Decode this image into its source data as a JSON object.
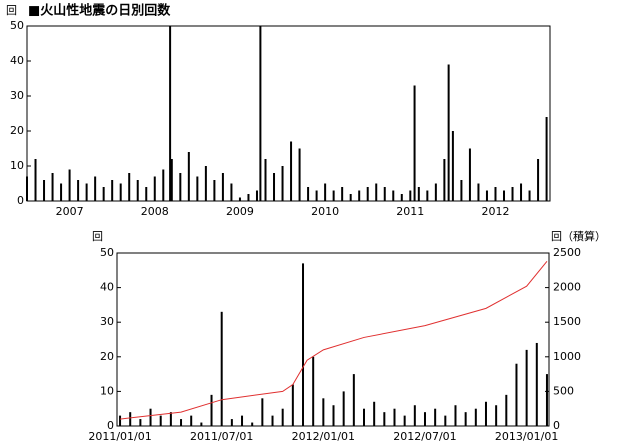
{
  "chart_data": [
    {
      "type": "bar",
      "title": "■火山性地震の日別回数",
      "y_label": "回",
      "color": "#000000",
      "x": [
        2007.0,
        2007.1,
        2007.2,
        2007.3,
        2007.4,
        2007.5,
        2007.6,
        2007.7,
        2007.8,
        2007.9,
        2008.0,
        2008.1,
        2008.2,
        2008.3,
        2008.4,
        2008.5,
        2008.6,
        2008.68,
        2008.7,
        2008.8,
        2008.9,
        2009.0,
        2009.1,
        2009.2,
        2009.3,
        2009.4,
        2009.5,
        2009.6,
        2009.7,
        2009.74,
        2009.8,
        2009.9,
        2010.0,
        2010.1,
        2010.2,
        2010.3,
        2010.4,
        2010.5,
        2010.6,
        2010.7,
        2010.8,
        2010.9,
        2011.0,
        2011.1,
        2011.2,
        2011.3,
        2011.4,
        2011.5,
        2011.55,
        2011.6,
        2011.7,
        2011.8,
        2011.9,
        2011.95,
        2012.0,
        2012.1,
        2012.2,
        2012.3,
        2012.4,
        2012.5,
        2012.6,
        2012.7,
        2012.8,
        2012.9,
        2013.0,
        2013.1
      ],
      "values": [
        7,
        12,
        6,
        8,
        5,
        9,
        6,
        5,
        7,
        4,
        6,
        5,
        8,
        6,
        4,
        7,
        9,
        50,
        12,
        8,
        14,
        7,
        10,
        6,
        8,
        5,
        1,
        2,
        3,
        50,
        12,
        8,
        10,
        17,
        15,
        4,
        3,
        5,
        3,
        4,
        2,
        3,
        4,
        5,
        4,
        3,
        2,
        3,
        33,
        4,
        3,
        5,
        12,
        39,
        20,
        6,
        15,
        5,
        3,
        4,
        3,
        4,
        5,
        3,
        12,
        24
      ],
      "xlim": [
        2007.0,
        2013.14
      ],
      "xticks": [
        {
          "value": 2007.5,
          "label": "2007"
        },
        {
          "value": 2008.5,
          "label": "2008"
        },
        {
          "value": 2009.5,
          "label": "2009"
        },
        {
          "value": 2010.5,
          "label": "2010"
        },
        {
          "value": 2011.5,
          "label": "2011"
        },
        {
          "value": 2012.5,
          "label": "2012"
        }
      ],
      "ylim": [
        0,
        50
      ],
      "yticks": [
        0,
        10,
        20,
        30,
        40,
        50
      ]
    },
    {
      "type": "bar",
      "y_label": "回",
      "y2_label": "回（積算）",
      "series": [
        {
          "name": "日別回数",
          "color": "#000000",
          "x": [
            2011.0,
            2011.05,
            2011.1,
            2011.15,
            2011.2,
            2011.25,
            2011.3,
            2011.35,
            2011.4,
            2011.45,
            2011.5,
            2011.55,
            2011.6,
            2011.65,
            2011.7,
            2011.75,
            2011.8,
            2011.85,
            2011.9,
            2011.95,
            2012.0,
            2012.05,
            2012.1,
            2012.15,
            2012.2,
            2012.25,
            2012.3,
            2012.35,
            2012.4,
            2012.45,
            2012.5,
            2012.55,
            2012.6,
            2012.65,
            2012.7,
            2012.75,
            2012.8,
            2012.85,
            2012.9,
            2012.95,
            2013.0,
            2013.05,
            2013.1
          ],
          "values": [
            3,
            4,
            2,
            5,
            3,
            4,
            2,
            3,
            1,
            9,
            33,
            2,
            3,
            1,
            8,
            3,
            5,
            12,
            47,
            20,
            8,
            6,
            10,
            15,
            5,
            7,
            4,
            5,
            3,
            6,
            4,
            5,
            3,
            6,
            4,
            5,
            7,
            6,
            9,
            18,
            22,
            24,
            15
          ]
        },
        {
          "name": "積算",
          "color": "#e03030",
          "axis": "y2",
          "x": [
            2011.0,
            2011.3,
            2011.5,
            2011.8,
            2011.85,
            2011.92,
            2012.0,
            2012.2,
            2012.5,
            2012.8,
            2013.0,
            2013.1
          ],
          "values": [
            100,
            200,
            380,
            500,
            600,
            950,
            1100,
            1280,
            1450,
            1700,
            2020,
            2380
          ]
        }
      ],
      "xlim": [
        2010.985,
        2013.11
      ],
      "xticks": [
        {
          "value": 2011.0,
          "label": "2011/01/01"
        },
        {
          "value": 2011.5,
          "label": "2011/07/01"
        },
        {
          "value": 2012.0,
          "label": "2012/01/01"
        },
        {
          "value": 2012.5,
          "label": "2012/07/01"
        },
        {
          "value": 2013.0,
          "label": "2013/01/01"
        }
      ],
      "ylim": [
        0,
        50
      ],
      "yticks": [
        0,
        10,
        20,
        30,
        40,
        50
      ],
      "y2lim": [
        0,
        2500
      ],
      "y2ticks": [
        0,
        500,
        1000,
        1500,
        2000,
        2500
      ]
    }
  ]
}
